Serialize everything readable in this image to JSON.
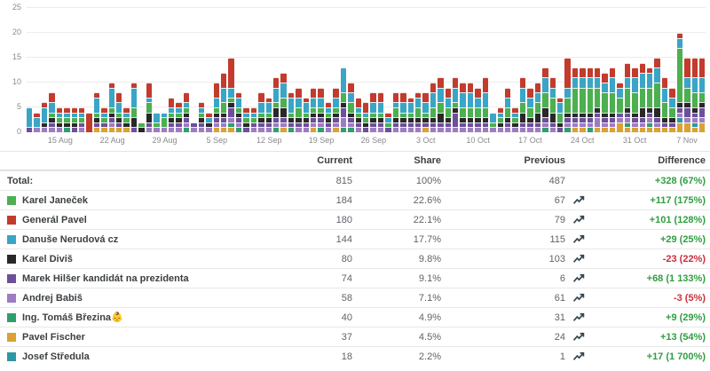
{
  "chart_data": {
    "type": "bar",
    "stacked": true,
    "title": "",
    "xlabel": "",
    "ylabel": "",
    "ylim": [
      0,
      25
    ],
    "grid": true,
    "legend_position": "table-below",
    "y_ticks": [
      0,
      5,
      10,
      15,
      20,
      25
    ],
    "x_tick_labels": [
      "15 Aug",
      "22 Aug",
      "29 Aug",
      "5 Sep",
      "12 Sep",
      "19 Sep",
      "26 Sep",
      "3 Oct",
      "10 Oct",
      "17 Oct",
      "24 Oct",
      "31 Oct",
      "7 Nov"
    ],
    "series": [
      {
        "name": "Karel Janeček",
        "color": "#4caf50"
      },
      {
        "name": "Generál Pavel",
        "color": "#c23b2c"
      },
      {
        "name": "Danuše Nerudová cz",
        "color": "#3aa5c6"
      },
      {
        "name": "Karel Diviš",
        "color": "#282828"
      },
      {
        "name": "Marek Hilšer kandidát na prezidenta",
        "color": "#6d4f9b"
      },
      {
        "name": "Andrej Babiš",
        "color": "#9e7cc1"
      },
      {
        "name": "Ing. Tomáš Březina👶",
        "color": "#2f9e6d"
      },
      {
        "name": "Pavel Fischer",
        "color": "#daa133"
      },
      {
        "name": "Josef Středula",
        "color": "#2e97a5"
      }
    ],
    "stack_order_bottom_to_top": [
      7,
      8,
      6,
      5,
      4,
      3,
      0,
      2,
      1
    ],
    "x": [
      "11 Aug",
      "12 Aug",
      "13 Aug",
      "14 Aug",
      "15 Aug",
      "16 Aug",
      "17 Aug",
      "18 Aug",
      "19 Aug",
      "20 Aug",
      "21 Aug",
      "22 Aug",
      "23 Aug",
      "24 Aug",
      "25 Aug",
      "26 Aug",
      "27 Aug",
      "28 Aug",
      "29 Aug",
      "30 Aug",
      "31 Aug",
      "1 Sep",
      "2 Sep",
      "3 Sep",
      "4 Sep",
      "5 Sep",
      "6 Sep",
      "7 Sep",
      "8 Sep",
      "9 Sep",
      "10 Sep",
      "11 Sep",
      "12 Sep",
      "13 Sep",
      "14 Sep",
      "15 Sep",
      "16 Sep",
      "17 Sep",
      "18 Sep",
      "19 Sep",
      "20 Sep",
      "21 Sep",
      "22 Sep",
      "23 Sep",
      "24 Sep",
      "25 Sep",
      "26 Sep",
      "27 Sep",
      "28 Sep",
      "29 Sep",
      "30 Sep",
      "1 Oct",
      "2 Oct",
      "3 Oct",
      "4 Oct",
      "5 Oct",
      "6 Oct",
      "7 Oct",
      "8 Oct",
      "9 Oct",
      "10 Oct",
      "11 Oct",
      "12 Oct",
      "13 Oct",
      "14 Oct",
      "15 Oct",
      "16 Oct",
      "17 Oct",
      "18 Oct",
      "19 Oct",
      "20 Oct",
      "21 Oct",
      "22 Oct",
      "23 Oct",
      "24 Oct",
      "25 Oct",
      "26 Oct",
      "27 Oct",
      "28 Oct",
      "29 Oct",
      "30 Oct",
      "31 Oct",
      "1 Nov",
      "2 Nov",
      "3 Nov",
      "4 Nov",
      "5 Nov",
      "6 Nov",
      "7 Nov",
      "8 Nov",
      "9 Nov"
    ],
    "stacks": [
      [
        0,
        0,
        4,
        0,
        1,
        0,
        0,
        0,
        0
      ],
      [
        0,
        1,
        2,
        0,
        0,
        1,
        0,
        0,
        0
      ],
      [
        0,
        1,
        3,
        1,
        0,
        1,
        0,
        0,
        0
      ],
      [
        1,
        2,
        2,
        1,
        1,
        1,
        0,
        0,
        0
      ],
      [
        1,
        1,
        1,
        1,
        0,
        1,
        0,
        0,
        0
      ],
      [
        1,
        1,
        1,
        1,
        0,
        0,
        1,
        0,
        0
      ],
      [
        1,
        1,
        1,
        1,
        1,
        0,
        0,
        0,
        0
      ],
      [
        1,
        1,
        1,
        0,
        1,
        1,
        0,
        0,
        0
      ],
      [
        0,
        4,
        0,
        0,
        0,
        0,
        0,
        0,
        0
      ],
      [
        1,
        1,
        3,
        1,
        1,
        0,
        0,
        1,
        0
      ],
      [
        1,
        1,
        1,
        0,
        1,
        0,
        0,
        1,
        0
      ],
      [
        1,
        1,
        4,
        1,
        1,
        1,
        0,
        1,
        0
      ],
      [
        1,
        2,
        2,
        1,
        1,
        0,
        0,
        1,
        0
      ],
      [
        1,
        1,
        1,
        1,
        0,
        0,
        0,
        1,
        0
      ],
      [
        2,
        1,
        4,
        2,
        1,
        0,
        0,
        0,
        0
      ],
      [
        1,
        0,
        0,
        1,
        0,
        0,
        0,
        0,
        0
      ],
      [
        2,
        3,
        1,
        2,
        1,
        1,
        0,
        0,
        0
      ],
      [
        1,
        0,
        2,
        0,
        0,
        1,
        0,
        0,
        0
      ],
      [
        2,
        0,
        1,
        0,
        0,
        1,
        0,
        0,
        0
      ],
      [
        1,
        2,
        1,
        1,
        1,
        1,
        0,
        0,
        0
      ],
      [
        1,
        1,
        1,
        1,
        1,
        1,
        0,
        0,
        0
      ],
      [
        1,
        2,
        1,
        1,
        1,
        1,
        1,
        0,
        0
      ],
      [
        0,
        0,
        0,
        0,
        1,
        1,
        0,
        0,
        0
      ],
      [
        1,
        1,
        1,
        1,
        1,
        1,
        0,
        0,
        0
      ],
      [
        0,
        1,
        1,
        1,
        0,
        1,
        0,
        0,
        0
      ],
      [
        1,
        3,
        2,
        1,
        1,
        1,
        0,
        1,
        0
      ],
      [
        2,
        3,
        3,
        1,
        1,
        1,
        0,
        1,
        0
      ],
      [
        1,
        6,
        2,
        1,
        2,
        1,
        1,
        1,
        0
      ],
      [
        1,
        1,
        2,
        1,
        1,
        1,
        1,
        0,
        0
      ],
      [
        1,
        1,
        1,
        1,
        1,
        0,
        0,
        0,
        0
      ],
      [
        1,
        1,
        1,
        0,
        1,
        1,
        0,
        0,
        0
      ],
      [
        1,
        2,
        2,
        1,
        1,
        1,
        0,
        0,
        0
      ],
      [
        1,
        1,
        2,
        1,
        1,
        1,
        0,
        0,
        0
      ],
      [
        1,
        2,
        3,
        2,
        1,
        1,
        1,
        0,
        0
      ],
      [
        2,
        2,
        3,
        2,
        1,
        1,
        0,
        1,
        0
      ],
      [
        1,
        1,
        3,
        1,
        1,
        0,
        1,
        0,
        0
      ],
      [
        2,
        2,
        2,
        1,
        1,
        1,
        0,
        0,
        0
      ],
      [
        1,
        1,
        2,
        1,
        1,
        1,
        0,
        0,
        0
      ],
      [
        1,
        2,
        2,
        1,
        1,
        1,
        0,
        1,
        0
      ],
      [
        1,
        2,
        2,
        1,
        1,
        1,
        1,
        0,
        0
      ],
      [
        1,
        1,
        1,
        1,
        1,
        1,
        0,
        0,
        0
      ],
      [
        1,
        2,
        2,
        1,
        1,
        1,
        0,
        1,
        0
      ],
      [
        2,
        0,
        5,
        1,
        2,
        2,
        1,
        0,
        0
      ],
      [
        2,
        2,
        2,
        1,
        1,
        1,
        1,
        0,
        0
      ],
      [
        1,
        2,
        1,
        1,
        1,
        1,
        0,
        0,
        0
      ],
      [
        1,
        2,
        1,
        1,
        1,
        0,
        0,
        0,
        0
      ],
      [
        1,
        2,
        2,
        1,
        1,
        1,
        0,
        0,
        0
      ],
      [
        1,
        2,
        2,
        1,
        1,
        1,
        0,
        0,
        0
      ],
      [
        1,
        1,
        1,
        0,
        1,
        0,
        0,
        0,
        0
      ],
      [
        2,
        2,
        1,
        1,
        1,
        1,
        0,
        0,
        0
      ],
      [
        1,
        2,
        2,
        1,
        1,
        1,
        0,
        0,
        0
      ],
      [
        1,
        1,
        2,
        1,
        1,
        1,
        0,
        0,
        0
      ],
      [
        2,
        1,
        2,
        1,
        1,
        1,
        0,
        0,
        0
      ],
      [
        1,
        2,
        2,
        1,
        1,
        0,
        0,
        1,
        0
      ],
      [
        2,
        2,
        3,
        1,
        1,
        1,
        0,
        0,
        0
      ],
      [
        2,
        2,
        3,
        2,
        1,
        1,
        0,
        0,
        0
      ],
      [
        2,
        2,
        2,
        1,
        1,
        1,
        0,
        0,
        0
      ],
      [
        1,
        2,
        3,
        1,
        3,
        1,
        0,
        0,
        0
      ],
      [
        2,
        2,
        3,
        1,
        1,
        1,
        0,
        0,
        0
      ],
      [
        2,
        2,
        3,
        1,
        1,
        1,
        0,
        0,
        0
      ],
      [
        2,
        2,
        2,
        1,
        1,
        1,
        0,
        0,
        0
      ],
      [
        2,
        3,
        3,
        1,
        1,
        1,
        0,
        0,
        0
      ],
      [
        1,
        0,
        2,
        0,
        0,
        1,
        0,
        0,
        0
      ],
      [
        1,
        1,
        1,
        1,
        0,
        1,
        0,
        0,
        0
      ],
      [
        2,
        2,
        2,
        1,
        1,
        1,
        0,
        0,
        0
      ],
      [
        1,
        1,
        1,
        1,
        0,
        1,
        0,
        0,
        0
      ],
      [
        2,
        2,
        3,
        2,
        1,
        1,
        0,
        0,
        0
      ],
      [
        2,
        2,
        2,
        1,
        1,
        1,
        0,
        0,
        0
      ],
      [
        2,
        2,
        2,
        2,
        1,
        1,
        0,
        0,
        0
      ],
      [
        3,
        2,
        3,
        2,
        1,
        1,
        1,
        0,
        0
      ],
      [
        3,
        2,
        2,
        2,
        1,
        1,
        0,
        0,
        0
      ],
      [
        2,
        1,
        2,
        1,
        1,
        0,
        0,
        0,
        0
      ],
      [
        3,
        6,
        2,
        1,
        1,
        1,
        1,
        0,
        0
      ],
      [
        5,
        2,
        2,
        1,
        1,
        1,
        0,
        1,
        0
      ],
      [
        5,
        2,
        2,
        1,
        1,
        1,
        0,
        1,
        0
      ],
      [
        5,
        2,
        2,
        1,
        1,
        1,
        1,
        0,
        0
      ],
      [
        4,
        2,
        2,
        1,
        1,
        2,
        0,
        1,
        0
      ],
      [
        4,
        2,
        2,
        1,
        1,
        1,
        0,
        1,
        0
      ],
      [
        4,
        2,
        3,
        1,
        1,
        1,
        0,
        1,
        0
      ],
      [
        3,
        1,
        2,
        0,
        1,
        1,
        0,
        2,
        0
      ],
      [
        4,
        3,
        2,
        1,
        1,
        1,
        1,
        1,
        0
      ],
      [
        4,
        2,
        3,
        1,
        1,
        1,
        0,
        1,
        0
      ],
      [
        4,
        2,
        3,
        2,
        1,
        1,
        0,
        1,
        0
      ],
      [
        4,
        1,
        3,
        1,
        1,
        1,
        1,
        1,
        0
      ],
      [
        5,
        2,
        3,
        2,
        1,
        1,
        0,
        1,
        0
      ],
      [
        3,
        2,
        3,
        1,
        1,
        0,
        0,
        1,
        0
      ],
      [
        2,
        2,
        2,
        1,
        1,
        0,
        0,
        1,
        0
      ],
      [
        11,
        1,
        2,
        1,
        1,
        1,
        0,
        2,
        1
      ],
      [
        3,
        4,
        2,
        1,
        2,
        1,
        0,
        2,
        0
      ],
      [
        3,
        4,
        3,
        1,
        1,
        1,
        0,
        1,
        1
      ],
      [
        2,
        4,
        3,
        1,
        2,
        1,
        0,
        2,
        0
      ]
    ]
  },
  "table": {
    "headers": {
      "current": "Current",
      "share": "Share",
      "previous": "Previous",
      "difference": "Difference"
    },
    "total": {
      "label": "Total:",
      "current": "815",
      "share": "100%",
      "previous": "487",
      "difference": "+328 (67%)",
      "trend": "up"
    },
    "rows": [
      {
        "name": "Karel Janeček",
        "color": "#4caf50",
        "current": "184",
        "share": "22.6%",
        "previous": "67",
        "difference": "+117 (175%)",
        "trend": "up"
      },
      {
        "name": "Generál Pavel",
        "color": "#c23b2c",
        "current": "180",
        "share": "22.1%",
        "previous": "79",
        "difference": "+101 (128%)",
        "trend": "up"
      },
      {
        "name": "Danuše Nerudová cz",
        "color": "#3aa5c6",
        "current": "144",
        "share": "17.7%",
        "previous": "115",
        "difference": "+29 (25%)",
        "trend": "up"
      },
      {
        "name": "Karel Diviš",
        "color": "#282828",
        "current": "80",
        "share": "9.8%",
        "previous": "103",
        "difference": "-23 (22%)",
        "trend": "down"
      },
      {
        "name": "Marek Hilšer kandidát na prezidenta",
        "color": "#6d4f9b",
        "current": "74",
        "share": "9.1%",
        "previous": "6",
        "difference": "+68 (1 133%)",
        "trend": "up"
      },
      {
        "name": "Andrej Babiš",
        "color": "#9e7cc1",
        "current": "58",
        "share": "7.1%",
        "previous": "61",
        "difference": "-3 (5%)",
        "trend": "down"
      },
      {
        "name": "Ing. Tomáš Březina👶",
        "color": "#2f9e6d",
        "current": "40",
        "share": "4.9%",
        "previous": "31",
        "difference": "+9 (29%)",
        "trend": "up"
      },
      {
        "name": "Pavel Fischer",
        "color": "#daa133",
        "current": "37",
        "share": "4.5%",
        "previous": "24",
        "difference": "+13 (54%)",
        "trend": "up"
      },
      {
        "name": "Josef Středula",
        "color": "#2e97a5",
        "current": "18",
        "share": "2.2%",
        "previous": "1",
        "difference": "+17 (1 700%)",
        "trend": "up"
      }
    ]
  },
  "colors": {
    "diff_positive": "#2f9e41",
    "diff_negative": "#c9303c",
    "grid": "#ececec",
    "tick_text": "#8a8a8a",
    "header_text": "#3c4043",
    "value_text": "#5f6368"
  }
}
